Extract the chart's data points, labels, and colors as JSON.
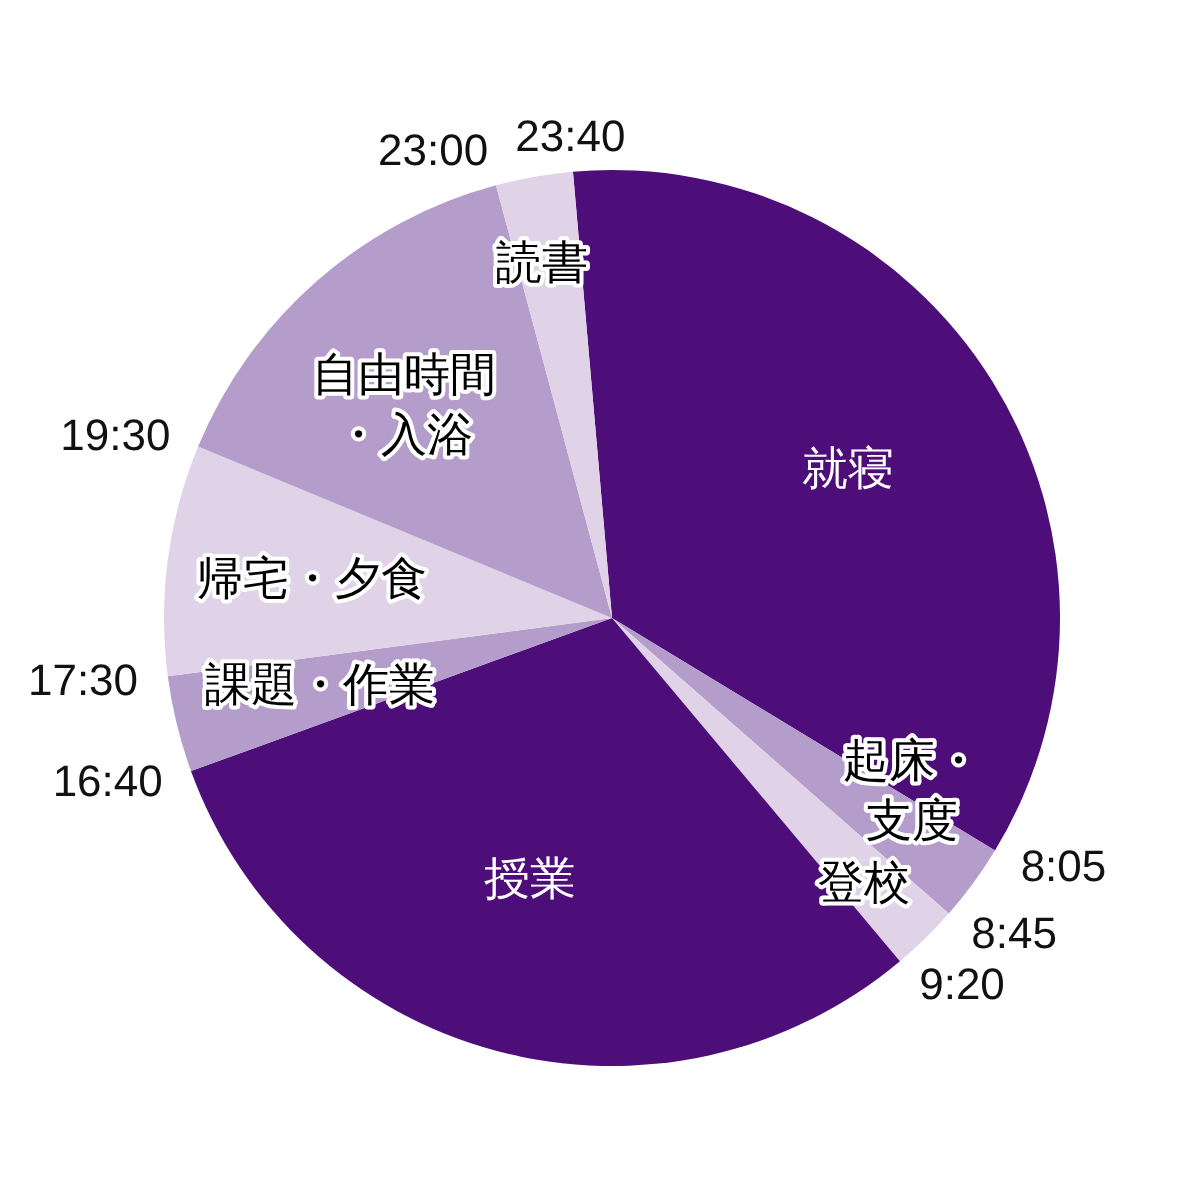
{
  "chart_data": {
    "type": "pie",
    "categories": [
      "就寝",
      "起床・支度",
      "登校",
      "授業",
      "課題・作業",
      "帰宅・夕食",
      "自由時間・入浴",
      "読書"
    ],
    "values": [
      35.07,
      2.78,
      2.43,
      30.56,
      3.47,
      8.33,
      14.58,
      2.78
    ],
    "colors": [
      "#4e0e7a",
      "#b49ccb",
      "#e0d3e8",
      "#4e0e7a",
      "#b49ccb",
      "#e0d3e8",
      "#b49ccb",
      "#e0d3e8"
    ],
    "annotations": [
      "8:05",
      "8:45",
      "9:20",
      "16:40",
      "17:30",
      "19:30",
      "23:00",
      "23:40"
    ]
  }
}
